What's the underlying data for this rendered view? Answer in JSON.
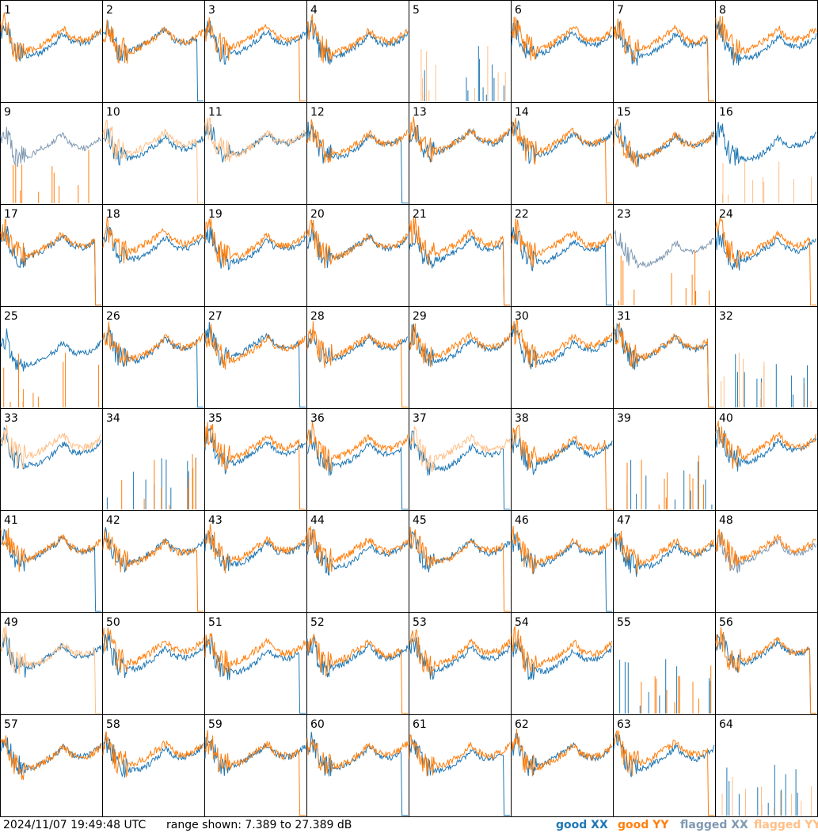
{
  "chart_data": {
    "type": "line",
    "layout": "small-multiples 8x8",
    "panels": [
      "1",
      "2",
      "3",
      "4",
      "5",
      "6",
      "7",
      "8",
      "9",
      "10",
      "11",
      "12",
      "13",
      "14",
      "15",
      "16",
      "17",
      "18",
      "19",
      "20",
      "21",
      "22",
      "23",
      "24",
      "25",
      "26",
      "27",
      "28",
      "29",
      "30",
      "31",
      "32",
      "33",
      "34",
      "35",
      "36",
      "37",
      "38",
      "39",
      "40",
      "41",
      "42",
      "43",
      "44",
      "45",
      "46",
      "47",
      "48",
      "49",
      "50",
      "51",
      "52",
      "53",
      "54",
      "55",
      "56",
      "57",
      "58",
      "59",
      "60",
      "61",
      "62",
      "63",
      "64"
    ],
    "y_range_db": [
      7.389,
      27.389
    ],
    "flagged_xx_panels": [
      9,
      23,
      48
    ],
    "flagged_yy_panels": [
      5,
      10,
      11,
      16,
      32,
      33,
      37,
      49,
      64
    ],
    "dropout_panels": {
      "xx": [
        5,
        32,
        34,
        39,
        55,
        64
      ],
      "yy": [
        5,
        9,
        16,
        23,
        25,
        32,
        34,
        39,
        55,
        64
      ]
    },
    "legend": [
      {
        "label": "good XX",
        "color": "#1f77b4"
      },
      {
        "label": "good YY",
        "color": "#ff7f0e"
      },
      {
        "label": "flagged XX",
        "color": "#7f99b2"
      },
      {
        "label": "flagged YY",
        "color": "#ffbf87"
      }
    ],
    "grid": false
  },
  "footer": {
    "timestamp": "2024/11/07 19:49:48 UTC",
    "range_text": "range shown: 7.389 to 27.389 dB"
  }
}
